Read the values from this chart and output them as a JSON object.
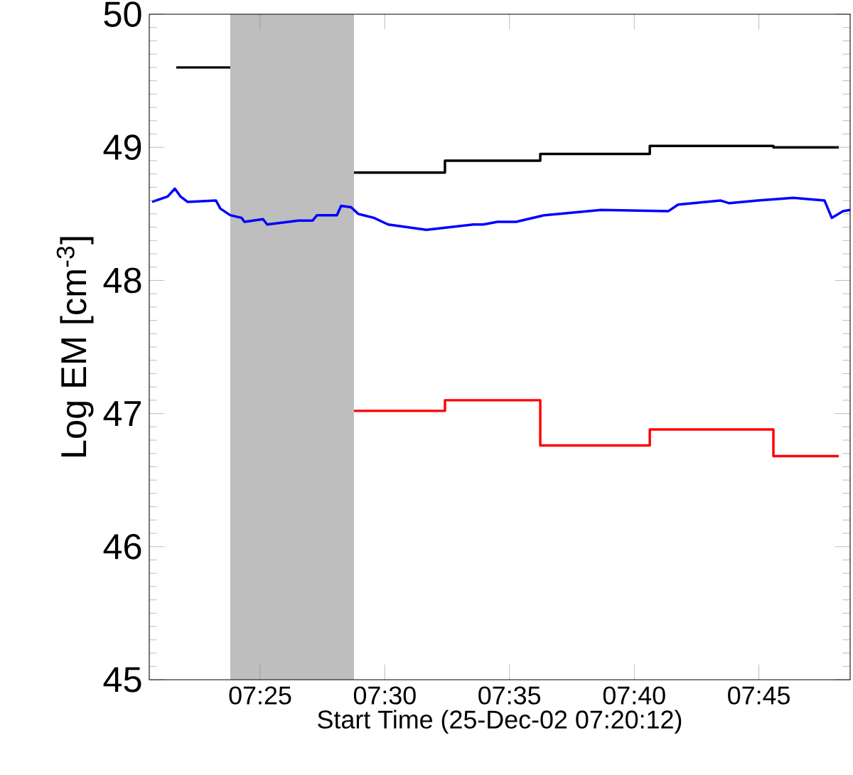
{
  "chart_data": {
    "type": "line",
    "xlabel": "Start Time (25-Dec-02 07:20:12)",
    "ylabel": "Log EM  [cm$^{-3}$]",
    "xlim": [
      7.3426,
      7.811
    ],
    "ylim": [
      45,
      50
    ],
    "xticks": [
      {
        "value": 7.4167,
        "label": "07:25"
      },
      {
        "value": 7.5,
        "label": "07:30"
      },
      {
        "value": 7.5833,
        "label": "07:35"
      },
      {
        "value": 7.6667,
        "label": "07:40"
      },
      {
        "value": 7.75,
        "label": "07:45"
      }
    ],
    "yticks": [
      45,
      46,
      47,
      48,
      49,
      50
    ],
    "bands": [
      {
        "axis": "x",
        "from": 7.3967,
        "to": 7.4794,
        "label": null,
        "color": "#bebebe"
      }
    ],
    "series": [
      {
        "type": "step",
        "color": "#000000",
        "x": [
          7.3606,
          7.3967,
          7.43,
          7.4794,
          7.5402,
          7.6039,
          7.6771,
          7.7597,
          7.8034
        ],
        "values": [
          49.6,
          49.6,
          null,
          48.81,
          48.9,
          48.95,
          49.01,
          49.0,
          49.0
        ]
      },
      {
        "type": "step",
        "color": "#ff0000",
        "x": [
          7.4794,
          7.5402,
          7.6039,
          7.6771,
          7.7597,
          7.8034
        ],
        "values": [
          47.02,
          47.1,
          46.76,
          46.88,
          46.68,
          46.68
        ]
      },
      {
        "color": "#0000ff",
        "x": [
          7.3445,
          7.3549,
          7.3597,
          7.3635,
          7.3682,
          7.3872,
          7.3901,
          7.3967,
          7.4043,
          7.4062,
          7.4186,
          7.4214,
          7.4423,
          7.4518,
          7.4547,
          7.468,
          7.4708,
          7.4775,
          7.4822,
          7.4927,
          7.5022,
          7.5278,
          7.5592,
          7.5658,
          7.5753,
          7.5877,
          7.6067,
          7.6447,
          7.6894,
          7.696,
          7.7245,
          7.7302,
          7.7492,
          7.773,
          7.7939,
          7.7987,
          7.8062,
          7.811
        ],
        "values": [
          48.59,
          48.63,
          48.69,
          48.63,
          48.59,
          48.6,
          48.54,
          48.49,
          48.47,
          48.44,
          48.46,
          48.42,
          48.45,
          48.45,
          48.49,
          48.49,
          48.56,
          48.55,
          48.5,
          48.47,
          48.42,
          48.38,
          48.42,
          48.42,
          48.44,
          48.44,
          48.49,
          48.53,
          48.52,
          48.57,
          48.6,
          48.58,
          48.6,
          48.62,
          48.6,
          48.47,
          48.52,
          48.53
        ]
      }
    ]
  }
}
